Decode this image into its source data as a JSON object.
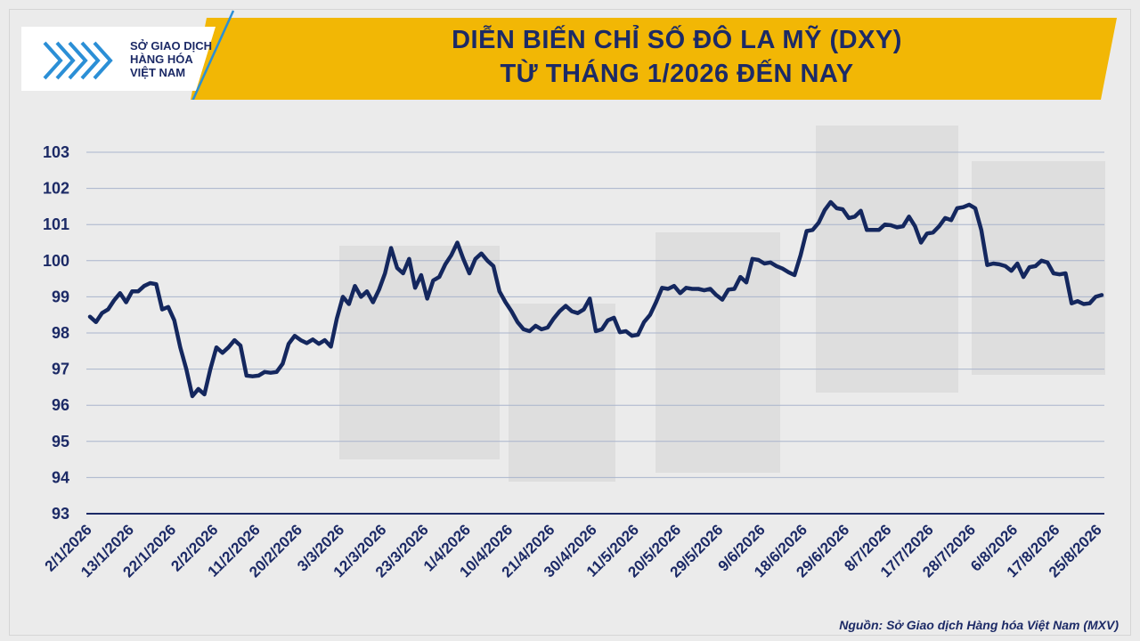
{
  "header": {
    "title_line1": "DIỄN BIẾN CHỈ SỐ ĐÔ LA MỸ (DXY)",
    "title_line2": "TỪ THÁNG 1/2026 ĐẾN NAY",
    "banner_color": "#f2b705",
    "accent_color": "#1c2a66"
  },
  "logo": {
    "line1": "SỞ GIAO DỊCH",
    "line2": "HÀNG HÓA",
    "line3": "VIỆT NAM",
    "icon": "mxv-chevron-logo-icon",
    "color": "#2b8fd6"
  },
  "source": "Nguồn: Sở Giao dịch Hàng hóa Việt Nam (MXV)",
  "chart_data": {
    "type": "line",
    "title": "DIỄN BIẾN CHỈ SỐ ĐÔ LA MỸ (DXY) TỪ THÁNG 1/2026 ĐẾN NAY",
    "xlabel": "",
    "ylabel": "",
    "ylim": [
      93,
      103
    ],
    "yticks": [
      93,
      94,
      95,
      96,
      97,
      98,
      99,
      100,
      101,
      102,
      103
    ],
    "grid": true,
    "legend": "none",
    "line_color": "#14275e",
    "xtick_labels": [
      "2/1/2026",
      "13/1/2026",
      "22/1/2026",
      "2/2/2026",
      "11/2/2026",
      "20/2/2026",
      "3/3/2026",
      "12/3/2026",
      "23/3/2026",
      "1/4/2026",
      "10/4/2026",
      "21/4/2026",
      "30/4/2026",
      "11/5/2026",
      "20/5/2026",
      "29/5/2026",
      "9/6/2026",
      "18/6/2026",
      "29/6/2026",
      "8/7/2026",
      "17/7/2026",
      "28/7/2026",
      "6/8/2026",
      "17/8/2026",
      "25/8/2026"
    ],
    "series": [
      {
        "values": [
          98.45,
          98.3,
          98.55,
          98.65,
          98.9,
          99.1,
          98.85,
          99.15,
          99.15,
          99.3,
          99.38,
          99.35,
          98.65,
          98.72,
          98.35,
          97.6,
          97.0,
          96.25,
          96.45,
          96.3,
          97.0,
          97.6,
          97.45,
          97.6,
          97.8,
          97.65,
          96.82,
          96.8,
          96.82,
          96.92,
          96.9,
          96.92,
          97.15,
          97.7,
          97.92,
          97.8,
          97.72,
          97.82,
          97.7,
          97.8,
          97.62,
          98.4,
          99.0,
          98.8,
          99.3,
          99.0,
          99.15,
          98.85,
          99.2,
          99.65,
          100.35,
          99.8,
          99.65,
          100.05,
          99.25,
          99.6,
          98.95,
          99.45,
          99.55,
          99.9,
          100.15,
          100.5,
          100.05,
          99.65,
          100.05,
          100.2,
          100.0,
          99.85,
          99.15,
          98.85,
          98.6,
          98.3,
          98.1,
          98.05,
          98.2,
          98.1,
          98.15,
          98.4,
          98.6,
          98.75,
          98.6,
          98.55,
          98.65,
          98.95,
          98.05,
          98.1,
          98.35,
          98.42,
          98.02,
          98.05,
          97.92,
          97.95,
          98.3,
          98.5,
          98.85,
          99.25,
          99.22,
          99.3,
          99.1,
          99.25,
          99.22,
          99.22,
          99.18,
          99.22,
          99.05,
          98.92,
          99.2,
          99.22,
          99.55,
          99.4,
          100.05,
          100.02,
          99.92,
          99.95,
          99.85,
          99.78,
          99.68,
          99.6,
          100.15,
          100.82,
          100.85,
          101.05,
          101.4,
          101.62,
          101.45,
          101.42,
          101.18,
          101.22,
          101.38,
          100.85,
          100.85,
          100.85,
          101.0,
          100.98,
          100.92,
          100.95,
          101.22,
          100.95,
          100.5,
          100.75,
          100.78,
          100.95,
          101.18,
          101.12,
          101.45,
          101.48,
          101.55,
          101.45,
          100.85,
          99.88,
          99.92,
          99.9,
          99.85,
          99.72,
          99.92,
          99.55,
          99.82,
          99.85,
          100.0,
          99.95,
          99.65,
          99.62,
          99.65,
          98.82,
          98.88,
          98.8,
          98.82,
          99.0,
          99.05
        ]
      }
    ]
  }
}
